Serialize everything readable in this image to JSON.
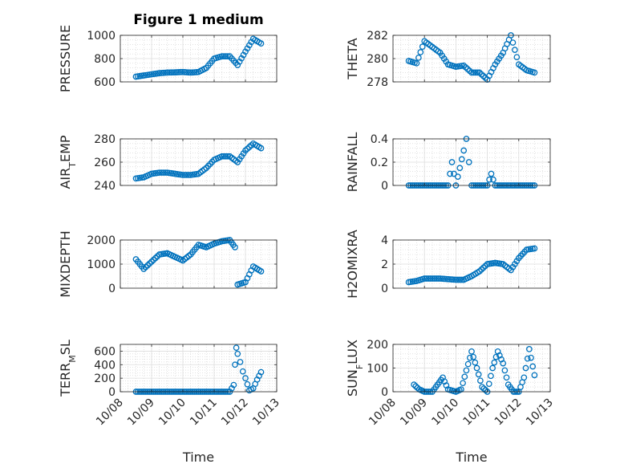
{
  "window": {
    "title": "Figure 1 medium"
  },
  "chart_data": [
    {
      "type": "scatter",
      "title": "Figure 1 medium",
      "ylabel": "PRESSURE",
      "ylabel_parts": [
        {
          "t": "PRESSURE",
          "s": false
        }
      ],
      "ylim": [
        600,
        1000
      ],
      "yticks": [
        600,
        800,
        1000
      ],
      "yticklabels": [
        "600",
        "800",
        "1000"
      ],
      "xlim": [
        "10/08",
        "10/13"
      ],
      "xticklabels": [],
      "grid": true,
      "color": "#0072BD",
      "x": [
        "10/08 12:00",
        "10/08 18:00",
        "10/09 00:00",
        "10/09 06:00",
        "10/09 12:00",
        "10/09 18:00",
        "10/10 00:00",
        "10/10 06:00",
        "10/10 12:00",
        "10/10 18:00",
        "10/11 00:00",
        "10/11 06:00",
        "10/11 12:00",
        "10/11 18:00",
        "10/12 00:00",
        "10/12 06:00",
        "10/12 12:00"
      ],
      "y": [
        645,
        655,
        665,
        675,
        680,
        682,
        685,
        680,
        685,
        720,
        800,
        820,
        820,
        745,
        860,
        970,
        930
      ]
    },
    {
      "type": "scatter",
      "ylabel": "THETA",
      "ylabel_parts": [
        {
          "t": "THETA",
          "s": false
        }
      ],
      "ylim": [
        278,
        282
      ],
      "yticks": [
        278,
        280,
        282
      ],
      "yticklabels": [
        "278",
        "280",
        "282"
      ],
      "xlim": [
        "10/08",
        "10/13"
      ],
      "xticklabels": [],
      "grid": true,
      "color": "#0072BD",
      "x": [
        "10/08 12:00",
        "10/08 18:00",
        "10/09 00:00",
        "10/09 06:00",
        "10/09 12:00",
        "10/09 18:00",
        "10/10 00:00",
        "10/10 06:00",
        "10/10 12:00",
        "10/10 18:00",
        "10/11 00:00",
        "10/11 06:00",
        "10/11 12:00",
        "10/11 18:00",
        "10/12 00:00",
        "10/12 06:00",
        "10/12 12:00"
      ],
      "y": [
        279.8,
        279.6,
        281.5,
        281.0,
        280.5,
        279.5,
        279.3,
        279.4,
        278.8,
        278.8,
        278.2,
        279.5,
        280.5,
        282.0,
        279.5,
        279.0,
        278.8
      ]
    },
    {
      "type": "scatter",
      "ylabel": "AIR_TEMP",
      "ylabel_parts": [
        {
          "t": "AIR",
          "s": false
        },
        {
          "t": "T",
          "s": true
        },
        {
          "t": "EMP",
          "s": false
        }
      ],
      "ylim": [
        240,
        280
      ],
      "yticks": [
        240,
        260,
        280
      ],
      "yticklabels": [
        "240",
        "260",
        "280"
      ],
      "xlim": [
        "10/08",
        "10/13"
      ],
      "xticklabels": [],
      "grid": true,
      "color": "#0072BD",
      "x": [
        "10/08 12:00",
        "10/08 18:00",
        "10/09 00:00",
        "10/09 06:00",
        "10/09 12:00",
        "10/09 18:00",
        "10/10 00:00",
        "10/10 06:00",
        "10/10 12:00",
        "10/10 18:00",
        "10/11 00:00",
        "10/11 06:00",
        "10/11 12:00",
        "10/11 18:00",
        "10/12 00:00",
        "10/12 06:00",
        "10/12 12:00"
      ],
      "y": [
        246,
        247,
        250,
        251,
        251,
        250,
        249,
        249,
        250,
        255,
        262,
        265,
        265,
        260,
        270,
        276,
        272
      ]
    },
    {
      "type": "scatter",
      "ylabel": "RAINFALL",
      "ylabel_parts": [
        {
          "t": "RAINFALL",
          "s": false
        }
      ],
      "ylim": [
        0,
        0.4
      ],
      "yticks": [
        0,
        0.2,
        0.4
      ],
      "yticklabels": [
        "0",
        "0.2",
        "0.4"
      ],
      "xlim": [
        "10/08",
        "10/13"
      ],
      "xticklabels": [],
      "grid": true,
      "color": "#0072BD",
      "x": [
        "10/08 12:00",
        "10/08 18:00",
        "10/09 00:00",
        "10/09 06:00",
        "10/09 12:00",
        "10/09 18:00",
        "10/09 21:00",
        "10/10 00:00",
        "10/10 06:00",
        "10/10 08:00",
        "10/10 10:00",
        "10/10 12:00",
        "10/10 18:00",
        "10/11 00:00",
        "10/11 03:00",
        "10/11 06:00",
        "10/11 12:00",
        "10/11 18:00",
        "10/12 00:00",
        "10/12 06:00",
        "10/12 12:00"
      ],
      "y": [
        0,
        0,
        0,
        0,
        0,
        0,
        0.2,
        0,
        0.3,
        0.4,
        0.2,
        0,
        0,
        0,
        0.1,
        0,
        0,
        0,
        0,
        0,
        0
      ]
    },
    {
      "type": "scatter",
      "ylabel": "MIXDEPTH",
      "ylabel_parts": [
        {
          "t": "MIXDEPTH",
          "s": false
        }
      ],
      "ylim": [
        0,
        2000
      ],
      "yticks": [
        0,
        1000,
        2000
      ],
      "yticklabels": [
        "0",
        "1000",
        "2000"
      ],
      "xlim": [
        "10/08",
        "10/13"
      ],
      "xticklabels": [],
      "grid": true,
      "color": "#0072BD",
      "x": [
        "10/08 12:00",
        "10/08 18:00",
        "10/09 00:00",
        "10/09 06:00",
        "10/09 12:00",
        "10/09 18:00",
        "10/10 00:00",
        "10/10 06:00",
        "10/10 12:00",
        "10/10 18:00",
        "10/11 00:00",
        "10/11 06:00",
        "10/11 12:00",
        "10/11 16:00",
        "10/11 18:00",
        "10/12 00:00",
        "10/12 06:00",
        "10/12 12:00"
      ],
      "y": [
        1200,
        800,
        1100,
        1400,
        1450,
        1300,
        1150,
        1400,
        1800,
        1700,
        1850,
        1950,
        2000,
        1700,
        150,
        250,
        900,
        700
      ]
    },
    {
      "type": "scatter",
      "ylabel": "H2OMIXRA",
      "ylabel_parts": [
        {
          "t": "H2OMIXRA",
          "s": false
        }
      ],
      "ylim": [
        0,
        4
      ],
      "yticks": [
        0,
        2,
        4
      ],
      "yticklabels": [
        "0",
        "2",
        "4"
      ],
      "xlim": [
        "10/08",
        "10/13"
      ],
      "xticklabels": [],
      "grid": true,
      "color": "#0072BD",
      "x": [
        "10/08 12:00",
        "10/08 18:00",
        "10/09 00:00",
        "10/09 06:00",
        "10/09 12:00",
        "10/09 18:00",
        "10/10 00:00",
        "10/10 06:00",
        "10/10 12:00",
        "10/10 18:00",
        "10/11 00:00",
        "10/11 06:00",
        "10/11 12:00",
        "10/11 18:00",
        "10/12 00:00",
        "10/12 06:00",
        "10/12 12:00"
      ],
      "y": [
        0.5,
        0.6,
        0.8,
        0.8,
        0.8,
        0.75,
        0.7,
        0.7,
        1.0,
        1.4,
        2.0,
        2.1,
        2.0,
        1.5,
        2.5,
        3.2,
        3.3
      ]
    },
    {
      "type": "scatter",
      "ylabel": "TERR_MSL",
      "ylabel_parts": [
        {
          "t": "TERR",
          "s": false
        },
        {
          "t": "M",
          "s": true
        },
        {
          "t": "SL",
          "s": false
        }
      ],
      "ylim": [
        0,
        700
      ],
      "yticks": [
        0,
        200,
        400,
        600
      ],
      "yticklabels": [
        "0",
        "200",
        "400",
        "600"
      ],
      "xlim": [
        "10/08",
        "10/13"
      ],
      "xticklabels": [
        "10/08",
        "10/09",
        "10/10",
        "10/11",
        "10/12",
        "10/13"
      ],
      "xlabel": "Time",
      "grid": true,
      "color": "#0072BD",
      "x": [
        "10/08 12:00",
        "10/09 00:00",
        "10/09 12:00",
        "10/10 00:00",
        "10/10 12:00",
        "10/11 00:00",
        "10/11 12:00",
        "10/11 15:00",
        "10/11 16:00",
        "10/11 17:00",
        "10/11 18:00",
        "10/11 20:00",
        "10/11 22:00",
        "10/12 00:00",
        "10/12 03:00",
        "10/12 06:00",
        "10/12 09:00",
        "10/12 12:00"
      ],
      "y": [
        0,
        0,
        0,
        0,
        0,
        0,
        0,
        100,
        400,
        650,
        560,
        440,
        300,
        200,
        20,
        50,
        180,
        290
      ]
    },
    {
      "type": "scatter",
      "ylabel": "SUN_FLUX",
      "ylabel_parts": [
        {
          "t": "SUN",
          "s": false
        },
        {
          "t": "F",
          "s": true
        },
        {
          "t": "LUX",
          "s": false
        }
      ],
      "ylim": [
        0,
        200
      ],
      "yticks": [
        0,
        100,
        200
      ],
      "yticklabels": [
        "0",
        "100",
        "200"
      ],
      "xlim": [
        "10/08",
        "10/13"
      ],
      "xticklabels": [
        "10/08",
        "10/09",
        "10/10",
        "10/11",
        "10/12",
        "10/13"
      ],
      "xlabel": "Time",
      "grid": true,
      "color": "#0072BD",
      "x": [
        "10/08 16:00",
        "10/08 20:00",
        "10/09 00:00",
        "10/09 06:00",
        "10/09 10:00",
        "10/09 14:00",
        "10/09 18:00",
        "10/10 00:00",
        "10/10 04:00",
        "10/10 08:00",
        "10/10 12:00",
        "10/10 16:00",
        "10/10 20:00",
        "10/11 00:00",
        "10/11 04:00",
        "10/11 08:00",
        "10/11 12:00",
        "10/11 16:00",
        "10/11 20:00",
        "10/12 00:00",
        "10/12 04:00",
        "10/12 08:00",
        "10/12 12:00"
      ],
      "y": [
        30,
        10,
        0,
        0,
        30,
        60,
        10,
        0,
        10,
        90,
        170,
        100,
        20,
        0,
        100,
        170,
        120,
        30,
        0,
        0,
        60,
        180,
        70
      ]
    }
  ]
}
